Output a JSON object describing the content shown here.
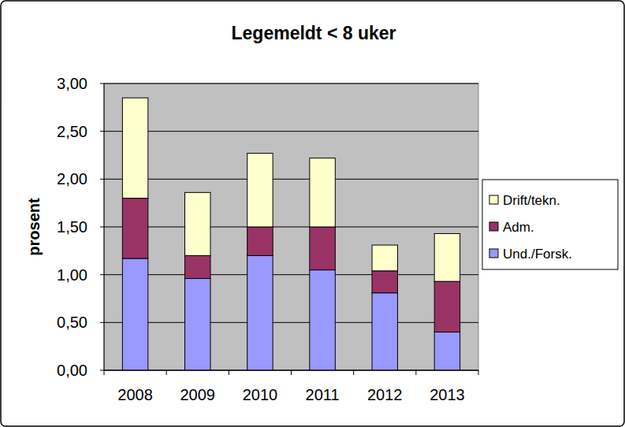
{
  "chart_data": {
    "type": "bar",
    "title": "Legemeldt < 8 uker",
    "y_label": "prosent",
    "categories": [
      "2008",
      "2009",
      "2010",
      "2011",
      "2012",
      "2013"
    ],
    "series": [
      {
        "name": "Und./Forsk.",
        "color": "#9999ff",
        "values": [
          1.17,
          0.96,
          1.2,
          1.05,
          0.81,
          0.4
        ]
      },
      {
        "name": "Adm.",
        "color": "#993366",
        "values": [
          0.63,
          0.24,
          0.3,
          0.45,
          0.23,
          0.53
        ]
      },
      {
        "name": "Drift/tekn.",
        "color": "#ffffcc",
        "values": [
          1.05,
          0.66,
          0.77,
          0.72,
          0.27,
          0.5
        ]
      }
    ],
    "stacked": true,
    "grid": true,
    "legend": "right",
    "ylim": [
      0,
      3
    ],
    "yticks": [
      {
        "value": 0,
        "label": "0,00"
      },
      {
        "value": 0.5,
        "label": "0,50"
      },
      {
        "value": 1,
        "label": "1,00"
      },
      {
        "value": 1.5,
        "label": "1,50"
      },
      {
        "value": 2,
        "label": "2,00"
      },
      {
        "value": 2.5,
        "label": "2,50"
      },
      {
        "value": 3,
        "label": "3,00"
      }
    ]
  }
}
